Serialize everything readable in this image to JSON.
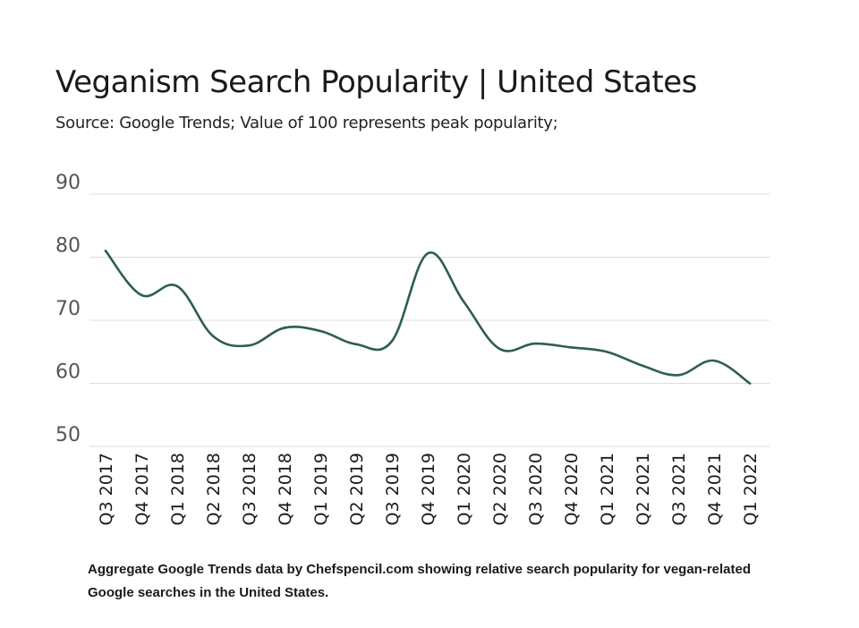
{
  "title": "Veganism Search Popularity | United States",
  "subtitle": "Source: Google Trends; Value of 100 represents peak popularity;",
  "caption": "Aggregate Google Trends data by Chefspencil.com showing relative search popularity for vegan-related Google searches in the United States.",
  "colors": {
    "line": "#2e5e4e",
    "grid": "#dcdcdc",
    "tick": "#555555"
  },
  "chart_data": {
    "type": "line",
    "title": "Veganism Search Popularity | United States",
    "subtitle": "Source: Google Trends; Value of 100 represents peak popularity;",
    "xlabel": "",
    "ylabel": "",
    "ylim": [
      50,
      90
    ],
    "yticks": [
      90,
      80,
      70,
      60,
      50
    ],
    "grid": true,
    "categories": [
      "Q3 2017",
      "Q4 2017",
      "Q1 2018",
      "Q2 2018",
      "Q3 2018",
      "Q4 2018",
      "Q1 2019",
      "Q2 2019",
      "Q3 2019",
      "Q4 2019",
      "Q1 2020",
      "Q2 2020",
      "Q3 2020",
      "Q4 2020",
      "Q1 2021",
      "Q2 2021",
      "Q3 2021",
      "Q4 2021",
      "Q1 2022"
    ],
    "series": [
      {
        "values": [
          81,
          74,
          75.4,
          67.5,
          66,
          68.8,
          68.3,
          66.2,
          66.7,
          80.6,
          73,
          65.5,
          66.3,
          65.7,
          65,
          62.8,
          61.3,
          63.6,
          60
        ]
      }
    ]
  }
}
